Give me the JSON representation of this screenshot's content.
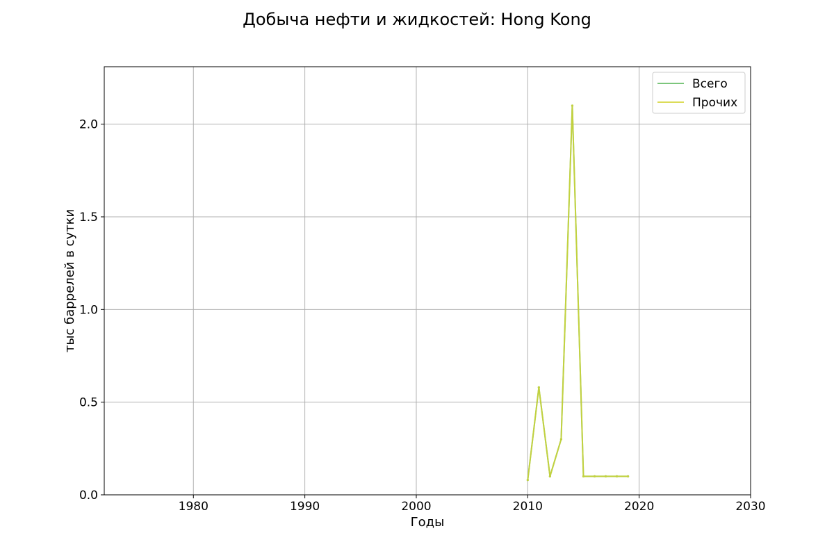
{
  "chart_data": {
    "type": "line",
    "title": "Добыча нефти и жидкостей: Hong Kong",
    "xlabel": "Годы",
    "ylabel": "тыс баррелей в сутки",
    "xlim": [
      1972,
      2030
    ],
    "ylim": [
      0,
      2.31
    ],
    "xticks": [
      1980,
      1990,
      2000,
      2010,
      2020,
      2030
    ],
    "yticks": [
      0.0,
      0.5,
      1.0,
      1.5,
      2.0
    ],
    "ytick_labels": [
      "0.0",
      "0.5",
      "1.0",
      "1.5",
      "2.0"
    ],
    "grid": true,
    "legend_position": "top-right",
    "x": [
      2010,
      2011,
      2012,
      2013,
      2014,
      2015,
      2016,
      2017,
      2018,
      2019
    ],
    "series": [
      {
        "name": "Всего",
        "color": "#5cb85c",
        "values": [
          0.08,
          0.58,
          0.1,
          0.3,
          2.1,
          0.1,
          0.1,
          0.1,
          0.1,
          0.1
        ]
      },
      {
        "name": "Прочих",
        "color": "#d4d430",
        "values": [
          0.08,
          0.58,
          0.1,
          0.3,
          2.1,
          0.1,
          0.1,
          0.1,
          0.1,
          0.1
        ]
      }
    ]
  }
}
